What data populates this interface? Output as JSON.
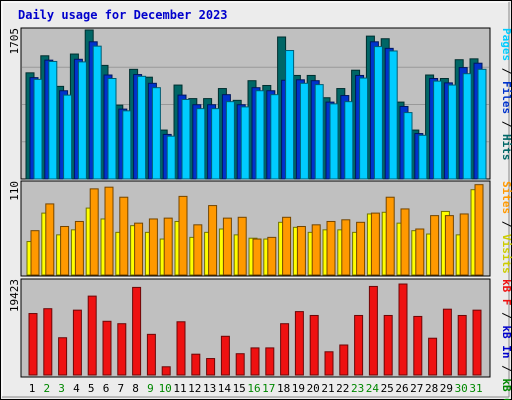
{
  "title": "Daily usage for December 2023",
  "colors": {
    "background": "#ececec",
    "plot_background": "#c0c0c0",
    "title": "#0000cc",
    "pages": "#00ccff",
    "files": "#0033cc",
    "hits": "#006666",
    "visits": "#ffff00",
    "sites": "#ff9900",
    "kbytes": "#ee1111",
    "day_label_normal": "#000000",
    "day_label_weekend": "#008800"
  },
  "legends": {
    "top": [
      {
        "text": "Pages",
        "color": "#00ccff"
      },
      {
        "text": " / ",
        "color": "#000000"
      },
      {
        "text": "Files",
        "color": "#0033cc"
      },
      {
        "text": " / ",
        "color": "#000000"
      },
      {
        "text": "Hits",
        "color": "#006666"
      }
    ],
    "middle": [
      {
        "text": "Sites",
        "color": "#ff9900"
      },
      {
        "text": " / ",
        "color": "#000000"
      },
      {
        "text": "Visits",
        "color": "#cccc00"
      }
    ],
    "bottom": [
      {
        "text": "kB F",
        "color": "#ee1111"
      },
      {
        "text": " / ",
        "color": "#000000"
      },
      {
        "text": "kB In",
        "color": "#0000cc"
      },
      {
        "text": " / ",
        "color": "#000000"
      },
      {
        "text": "kB Out",
        "color": "#008800"
      }
    ]
  },
  "chart_data": [
    {
      "type": "bar",
      "panel": "requests",
      "y_max_label": "1705",
      "ylim": [
        0,
        1705
      ],
      "x": [
        "1",
        "2",
        "3",
        "4",
        "5",
        "6",
        "7",
        "8",
        "9",
        "10",
        "11",
        "12",
        "13",
        "14",
        "15",
        "16",
        "17",
        "18",
        "19",
        "20",
        "21",
        "22",
        "23",
        "24",
        "25",
        "26",
        "27",
        "28",
        "29",
        "30",
        "31"
      ],
      "series": [
        {
          "name": "Hits",
          "values": [
            1215,
            1410,
            1060,
            1430,
            1705,
            1300,
            845,
            1255,
            1165,
            560,
            1075,
            920,
            920,
            1035,
            900,
            1125,
            1070,
            1625,
            1185,
            1185,
            930,
            1035,
            1245,
            1635,
            1605,
            880,
            560,
            1190,
            1150,
            1365,
            1375
          ]
        },
        {
          "name": "Files",
          "values": [
            1160,
            1360,
            1010,
            1370,
            1570,
            1190,
            800,
            1195,
            1095,
            510,
            960,
            850,
            850,
            965,
            850,
            1045,
            1010,
            1130,
            1135,
            1125,
            880,
            955,
            1185,
            1570,
            1495,
            830,
            520,
            1150,
            1100,
            1275,
            1325
          ]
        },
        {
          "name": "Pages",
          "values": [
            1140,
            1345,
            960,
            1340,
            1520,
            1150,
            780,
            1175,
            1045,
            490,
            910,
            805,
            805,
            885,
            825,
            1010,
            965,
            1470,
            1095,
            1080,
            860,
            885,
            1155,
            1515,
            1465,
            760,
            500,
            1120,
            1075,
            1205,
            1255
          ]
        }
      ]
    },
    {
      "type": "bar",
      "panel": "visitors",
      "y_max_label": "110",
      "ylim": [
        0,
        110
      ],
      "x": [
        "1",
        "2",
        "3",
        "4",
        "5",
        "6",
        "7",
        "8",
        "9",
        "10",
        "11",
        "12",
        "13",
        "14",
        "15",
        "16",
        "17",
        "18",
        "19",
        "20",
        "21",
        "22",
        "23",
        "24",
        "25",
        "26",
        "27",
        "28",
        "29",
        "30",
        "31"
      ],
      "series": [
        {
          "name": "Visits",
          "values": [
            40,
            74,
            48,
            54,
            80,
            67,
            51,
            59,
            51,
            43,
            64,
            45,
            51,
            55,
            48,
            44,
            43,
            63,
            57,
            51,
            54,
            54,
            51,
            73,
            75,
            62,
            53,
            49,
            76,
            48,
            102
          ]
        },
        {
          "name": "Sites",
          "values": [
            53,
            85,
            58,
            64,
            103,
            105,
            93,
            62,
            67,
            68,
            94,
            60,
            83,
            68,
            69,
            43,
            45,
            69,
            58,
            60,
            64,
            66,
            63,
            74,
            93,
            79,
            55,
            71,
            71,
            73,
            108
          ]
        }
      ]
    },
    {
      "type": "bar",
      "panel": "kbytes",
      "y_max_label": "19423",
      "ylim": [
        0,
        19423
      ],
      "x": [
        "1",
        "2",
        "3",
        "4",
        "5",
        "6",
        "7",
        "8",
        "9",
        "10",
        "11",
        "12",
        "13",
        "14",
        "15",
        "16",
        "17",
        "18",
        "19",
        "20",
        "21",
        "22",
        "23",
        "24",
        "25",
        "26",
        "27",
        "28",
        "29",
        "30",
        "31"
      ],
      "series": [
        {
          "name": "kB F",
          "values": [
            12700,
            13700,
            7700,
            13400,
            16300,
            11100,
            10600,
            18100,
            8400,
            1700,
            11000,
            4300,
            3400,
            8000,
            4400,
            5600,
            5600,
            10600,
            13100,
            12300,
            4800,
            6200,
            12300,
            18300,
            12300,
            18800,
            12100,
            7600,
            13600,
            12300,
            13400
          ]
        }
      ]
    }
  ]
}
